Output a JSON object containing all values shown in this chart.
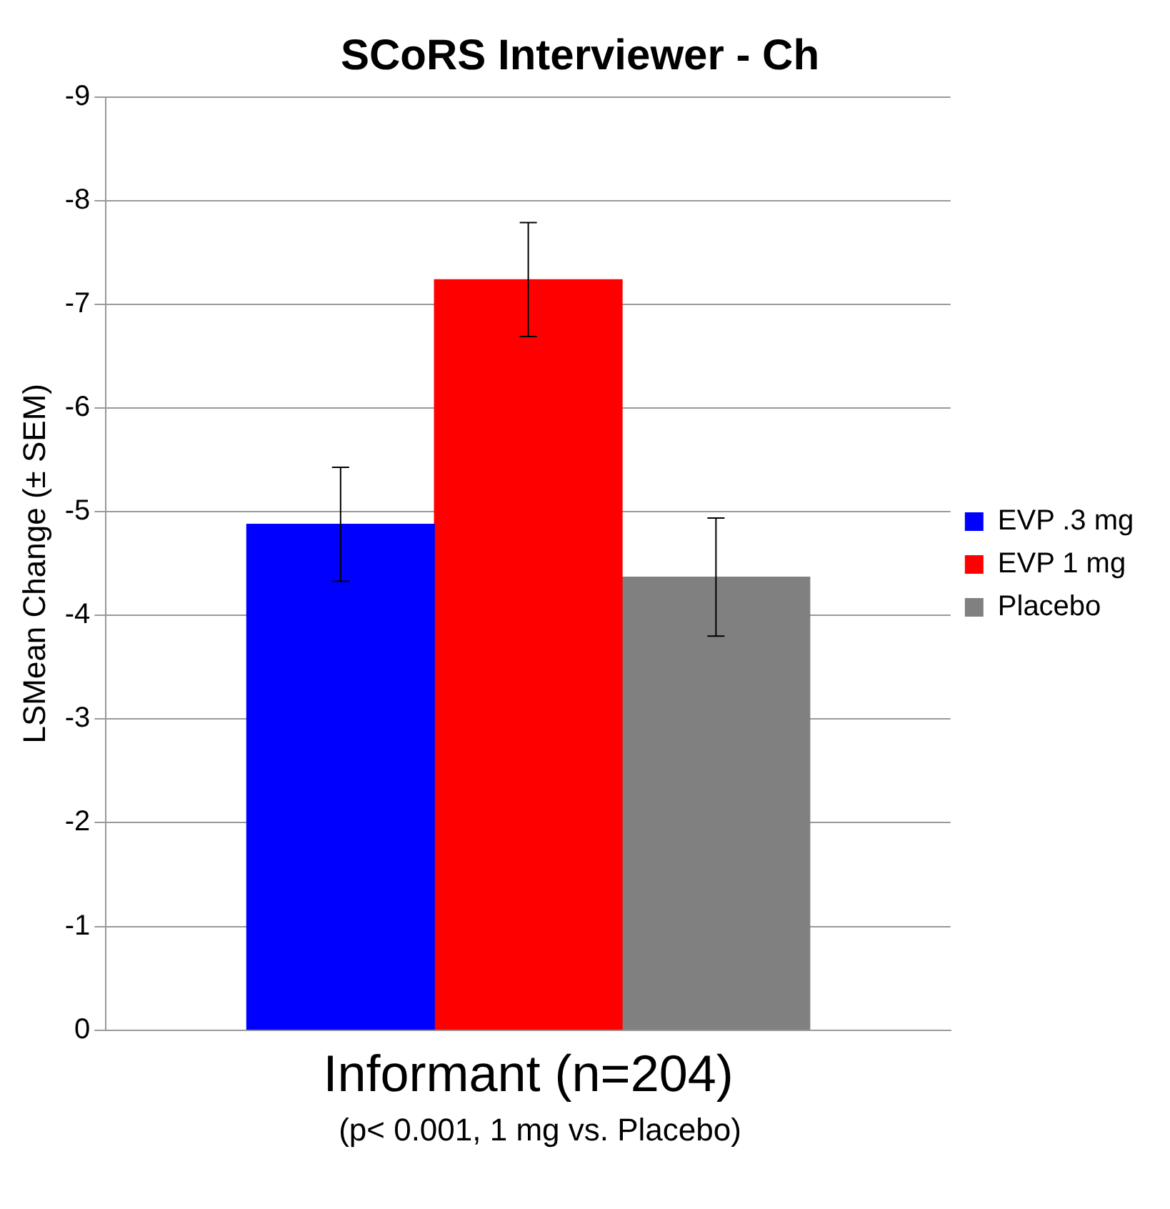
{
  "chart_data": {
    "type": "bar",
    "title": "SCoRS Interviewer - Ch",
    "ylabel": "LSMean Change (± SEM)",
    "categories": [
      null,
      "Informant (n=204)",
      null
    ],
    "series": [
      {
        "name": "EVP .3 mg",
        "color": "#0000ff",
        "values": [
          -4.88,
          null,
          null
        ],
        "errors": [
          0.55,
          null,
          null
        ]
      },
      {
        "name": "EVP 1 mg",
        "color": "#ff0000",
        "values": [
          null,
          -7.24,
          null
        ],
        "errors": [
          null,
          0.55,
          null
        ]
      },
      {
        "name": "Placebo",
        "color": "#808080",
        "values": [
          null,
          null,
          -4.37
        ],
        "errors": [
          null,
          null,
          0.57
        ]
      }
    ],
    "ylim": [
      0,
      -9
    ],
    "yticks": [
      0,
      -1,
      -2,
      -3,
      -4,
      -5,
      -6,
      -7,
      -8,
      -9
    ],
    "grid": "y",
    "legend": "right",
    "annotations": [
      "(p< 0.001, 1 mg vs. Placebo)"
    ]
  }
}
